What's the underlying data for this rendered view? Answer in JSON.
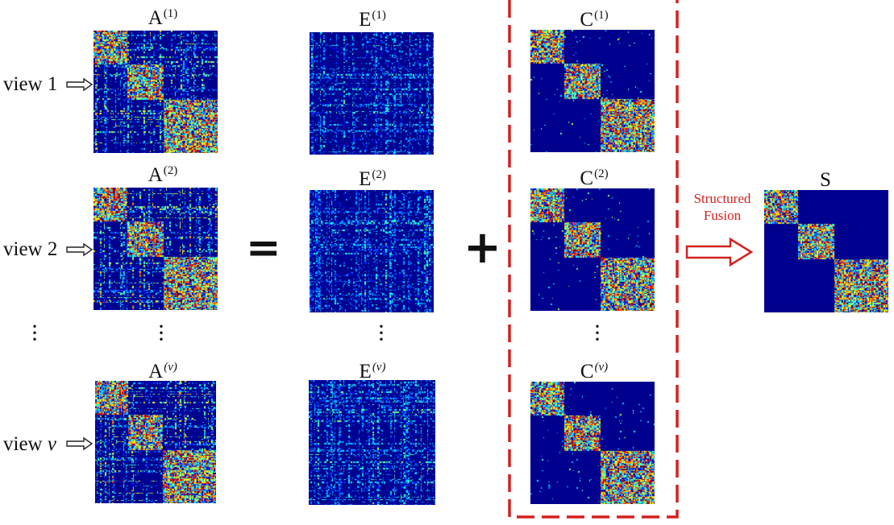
{
  "views": [
    {
      "label": "view 1",
      "prefix": "view ",
      "suffix": "1",
      "italic": false
    },
    {
      "label": "view 2",
      "prefix": "view ",
      "suffix": "2",
      "italic": false
    },
    {
      "label": "view v",
      "prefix": "view ",
      "suffix": "v",
      "italic": true
    }
  ],
  "matrices": {
    "A": [
      {
        "base": "A",
        "sup": "(1)"
      },
      {
        "base": "A",
        "sup": "(2)"
      },
      {
        "base": "A",
        "sup": "(v)"
      }
    ],
    "E": [
      {
        "base": "E",
        "sup": "(1)"
      },
      {
        "base": "E",
        "sup": "(2)"
      },
      {
        "base": "E",
        "sup": "(v)"
      }
    ],
    "C": [
      {
        "base": "C",
        "sup": "(1)"
      },
      {
        "base": "C",
        "sup": "(2)"
      },
      {
        "base": "C",
        "sup": "(v)"
      }
    ],
    "S": {
      "base": "S"
    }
  },
  "operators": {
    "equals": "=",
    "plus": "+"
  },
  "fusion": {
    "line1": "Structured",
    "line2": "Fusion"
  },
  "colors": {
    "matrix_background": "#00008f",
    "dashed_box": "#d42020",
    "fusion_text": "#d42020",
    "fusion_arrow": "#d42020"
  },
  "block_structure": {
    "num_blocks": 3,
    "block_fractions": [
      0.27,
      0.29,
      0.44
    ]
  }
}
